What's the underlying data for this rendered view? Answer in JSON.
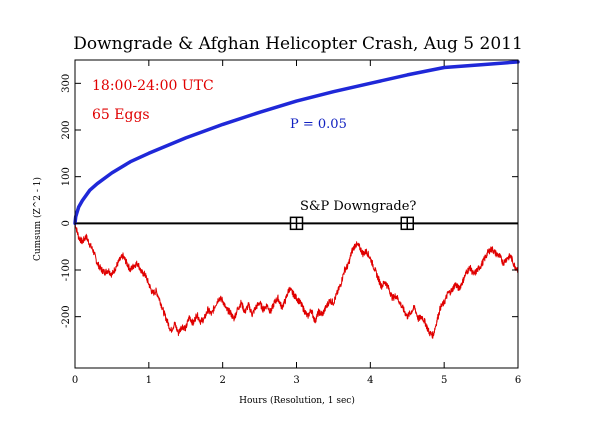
{
  "colors": {
    "background": "#ffffff",
    "frame": "#000000",
    "cumdev": "#e00000",
    "probability": "#1f28d8",
    "zero_line": "#000000"
  },
  "annotations": {
    "time_range": "18:00-24:00 UTC",
    "eggs": "65 Eggs",
    "probability": "P = 0.05",
    "event": "S&P Downgrade?"
  },
  "chart_data": {
    "type": "line",
    "title": "Downgrade & Afghan Helicopter Crash, Aug 5 2011",
    "xlabel": "Hours (Resolution, 1 sec)",
    "ylabel": "Cumsum (Z^2 - 1)",
    "xlim": [
      0,
      6
    ],
    "ylim": [
      -310,
      350
    ],
    "xticks": [
      0,
      1,
      2,
      3,
      4,
      5,
      6
    ],
    "yticks": [
      -200,
      -100,
      0,
      100,
      200,
      300
    ],
    "grid": false,
    "zero_line": true,
    "series": [
      {
        "role": "cumulative-deviation",
        "color": "#e00000",
        "x": [
          0,
          0.05,
          0.1,
          0.15,
          0.2,
          0.25,
          0.3,
          0.35,
          0.4,
          0.45,
          0.5,
          0.55,
          0.6,
          0.65,
          0.7,
          0.75,
          0.8,
          0.85,
          0.9,
          0.95,
          1.0,
          1.05,
          1.1,
          1.15,
          1.2,
          1.25,
          1.3,
          1.35,
          1.4,
          1.45,
          1.5,
          1.55,
          1.6,
          1.65,
          1.7,
          1.75,
          1.8,
          1.85,
          1.9,
          1.95,
          2.0,
          2.05,
          2.1,
          2.15,
          2.2,
          2.25,
          2.3,
          2.35,
          2.4,
          2.45,
          2.5,
          2.55,
          2.6,
          2.65,
          2.7,
          2.75,
          2.8,
          2.85,
          2.9,
          2.95,
          3.0,
          3.05,
          3.1,
          3.15,
          3.2,
          3.25,
          3.3,
          3.35,
          3.4,
          3.45,
          3.5,
          3.55,
          3.6,
          3.65,
          3.7,
          3.75,
          3.8,
          3.85,
          3.9,
          3.95,
          4.0,
          4.05,
          4.1,
          4.15,
          4.2,
          4.25,
          4.3,
          4.35,
          4.4,
          4.45,
          4.5,
          4.55,
          4.6,
          4.65,
          4.7,
          4.75,
          4.8,
          4.85,
          4.9,
          4.95,
          5.0,
          5.05,
          5.1,
          5.15,
          5.2,
          5.25,
          5.3,
          5.35,
          5.4,
          5.45,
          5.5,
          5.55,
          5.6,
          5.65,
          5.7,
          5.75,
          5.8,
          5.85,
          5.9,
          5.95,
          6.0
        ],
        "y": [
          0,
          -30,
          -40,
          -28,
          -45,
          -60,
          -85,
          -98,
          -105,
          -100,
          -110,
          -95,
          -80,
          -70,
          -85,
          -100,
          -90,
          -85,
          -105,
          -110,
          -130,
          -150,
          -145,
          -165,
          -190,
          -210,
          -230,
          -215,
          -235,
          -220,
          -225,
          -200,
          -215,
          -195,
          -210,
          -205,
          -185,
          -195,
          -175,
          -160,
          -165,
          -185,
          -190,
          -205,
          -185,
          -170,
          -190,
          -175,
          -195,
          -180,
          -170,
          -185,
          -175,
          -190,
          -170,
          -160,
          -180,
          -165,
          -140,
          -150,
          -160,
          -170,
          -185,
          -200,
          -185,
          -210,
          -190,
          -195,
          -180,
          -165,
          -170,
          -150,
          -130,
          -100,
          -90,
          -60,
          -45,
          -50,
          -65,
          -60,
          -75,
          -95,
          -115,
          -135,
          -125,
          -140,
          -160,
          -155,
          -170,
          -185,
          -200,
          -190,
          -180,
          -205,
          -200,
          -215,
          -235,
          -240,
          -210,
          -180,
          -170,
          -150,
          -145,
          -130,
          -140,
          -125,
          -105,
          -95,
          -110,
          -100,
          -90,
          -75,
          -60,
          -55,
          -65,
          -70,
          -85,
          -75,
          -70,
          -90,
          -100
        ]
      },
      {
        "role": "probability-envelope",
        "label": "P = 0.05",
        "color": "#1f28d8",
        "x": [
          0,
          0.01,
          0.025,
          0.05,
          0.1,
          0.2,
          0.3,
          0.5,
          0.75,
          1.0,
          1.5,
          2.0,
          2.5,
          3.0,
          3.5,
          4.0,
          4.5,
          5.0,
          5.5,
          6.0
        ],
        "y": [
          0,
          14,
          22,
          35,
          49,
          71,
          85,
          108,
          132,
          150,
          183,
          212,
          238,
          262,
          282,
          300,
          318,
          334,
          340,
          346
        ]
      }
    ],
    "markers": [
      {
        "x": 3.0,
        "y": 0
      },
      {
        "x": 4.5,
        "y": 0
      }
    ]
  }
}
